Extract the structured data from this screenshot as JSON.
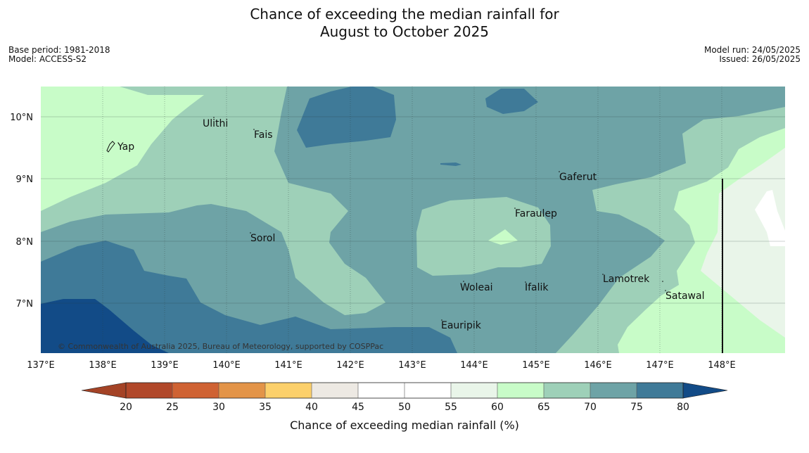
{
  "title_line1": "Chance of exceeding the median rainfall for",
  "title_line2": "August to October 2025",
  "meta_left": {
    "base_period": "Base period: 1981-2018",
    "model": "Model: ACCESS-S2"
  },
  "meta_right": {
    "model_run": "Model run: 24/05/2025",
    "issued": "Issued: 26/05/2025"
  },
  "copyright": "© Commonwealth of Australia 2025, Bureau of Meteorology, supported by COSPPac",
  "lon_ticks": [
    "137°E",
    "138°E",
    "139°E",
    "140°E",
    "141°E",
    "142°E",
    "143°E",
    "144°E",
    "145°E",
    "146°E",
    "147°E",
    "148°E"
  ],
  "lat_ticks": [
    "10°N",
    "9°N",
    "8°N",
    "7°N"
  ],
  "places": [
    {
      "name": "Yap",
      "lon": 138.23,
      "lat": 9.52
    },
    {
      "name": "Ulithi",
      "lon": 139.72,
      "lat": 9.93
    },
    {
      "name": "Fais",
      "lon": 140.45,
      "lat": 9.75
    },
    {
      "name": "Gaferut",
      "lon": 145.35,
      "lat": 9.06
    },
    {
      "name": "Faraulep",
      "lon": 144.55,
      "lat": 8.47
    },
    {
      "name": "Sorol",
      "lon": 140.38,
      "lat": 8.08
    },
    {
      "name": "Woleai",
      "lon": 143.9,
      "lat": 7.3
    },
    {
      "name": "Ifalik",
      "lon": 144.45,
      "lat": 7.3
    },
    {
      "name": "Lamotrek",
      "lon": 146.05,
      "lat": 7.4
    },
    {
      "name": "Satawal",
      "lon": 147.05,
      "lat": 7.15
    },
    {
      "name": "Eauripik",
      "lon": 143.5,
      "lat": 6.68
    }
  ],
  "colorbar": {
    "label": "Chance of exceeding median rainfall (%)",
    "ticks": [
      "20",
      "25",
      "30",
      "35",
      "40",
      "45",
      "50",
      "55",
      "60",
      "65",
      "70",
      "75",
      "80"
    ],
    "colors": [
      "#b1482a",
      "#cf6233",
      "#e39448",
      "#fcd06b",
      "#ede9e3",
      "#ffffff",
      "#ffffff",
      "#e9f5e9",
      "#c8fcc8",
      "#9ed0b8",
      "#6ea3a6",
      "#3f7a98"
    ],
    "under_color": "#a44326",
    "over_color": "#124b87"
  },
  "colors": {
    "c60_65": "#c8fcc8",
    "c65_70": "#9ed0b8",
    "c70_75": "#6ea3a6",
    "c75_80": "#3f7a98",
    "c80_plus": "#124b87",
    "c55_60": "#e9f5e9",
    "c50_55": "#ffffff"
  },
  "map_extent": {
    "lon_min": 137,
    "lon_max": 148.95,
    "lat_min": 6.2,
    "lat_max": 10.5
  }
}
